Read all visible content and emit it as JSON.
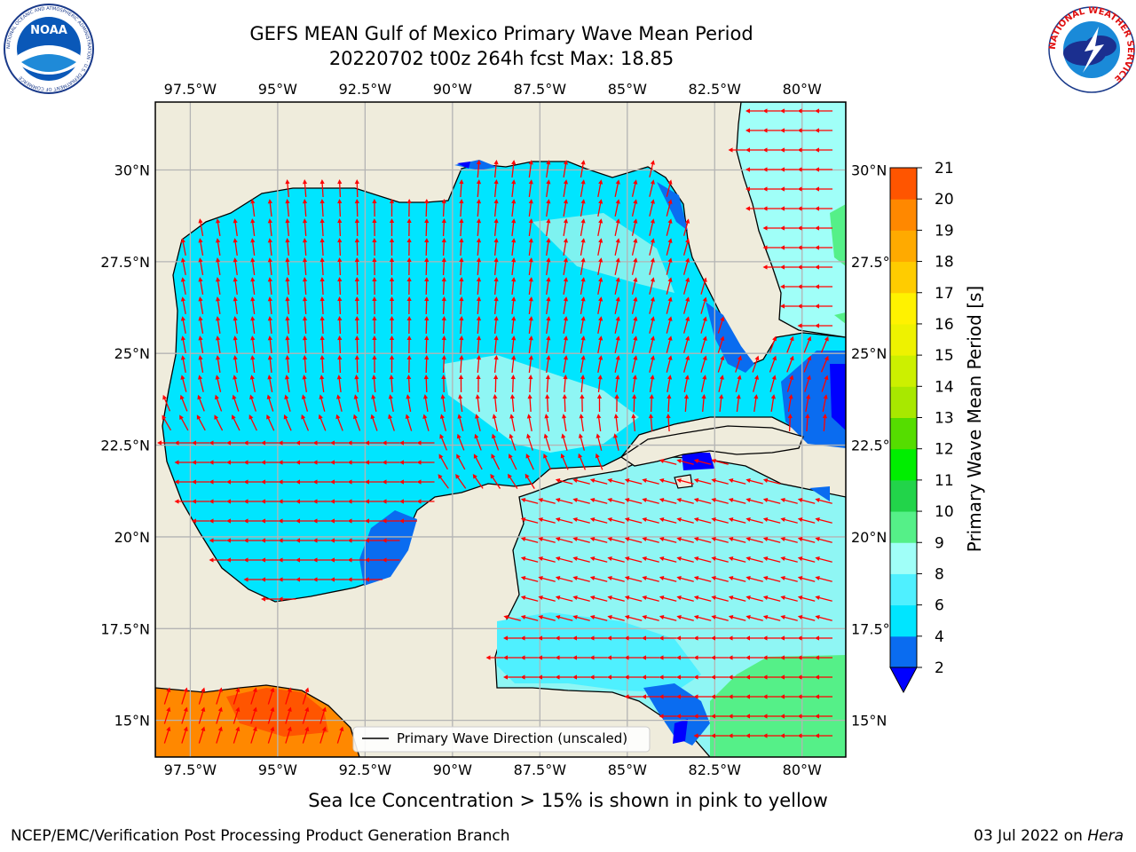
{
  "title": "GEFS MEAN Gulf of Mexico Primary Wave Mean Period",
  "subtitle": "20220702 t00z 264h fcst   Max: 18.85",
  "lon_ticks": [
    "97.5°W",
    "95°W",
    "92.5°W",
    "90°W",
    "87.5°W",
    "85°W",
    "82.5°W",
    "80°W"
  ],
  "lat_ticks": [
    "30°N",
    "27.5°N",
    "25°N",
    "22.5°N",
    "20°N",
    "17.5°N",
    "15°N"
  ],
  "colorbar": {
    "label": "Primary Wave Mean Period [s]",
    "tick_labels": [
      "2",
      "4",
      "6",
      "8",
      "9",
      "10",
      "11",
      "12",
      "13",
      "14",
      "15",
      "16",
      "17",
      "18",
      "19",
      "20",
      "21"
    ],
    "colors": [
      "#0a6cf0",
      "#00e5ff",
      "#4ff0ff",
      "#a0fff8",
      "#55f088",
      "#22d44a",
      "#00ee00",
      "#55dd00",
      "#a8e800",
      "#ccf000",
      "#eef200",
      "#fff200",
      "#ffcc00",
      "#ffaa00",
      "#ff8800",
      "#ff5500",
      "#ff2200",
      "#ff0000"
    ],
    "extend_color": "#0000ff"
  },
  "legend_label": "Primary Wave Direction (unscaled)",
  "note": "Sea Ice Concentration > 15% is shown in pink to yellow",
  "credit": "NCEP/EMC/Verification Post Processing Product Generation Branch",
  "date": "03 Jul 2022 on",
  "machine": "Hera",
  "logos": {
    "noaa": "NOAA",
    "noaa_ring": "NATIONAL OCEANIC AND ATMOSPHERIC ADMINISTRATION · U.S. DEPARTMENT OF COMMERCE",
    "nws_ring": "NATIONAL WEATHER SERVICE"
  },
  "colors": {
    "land": "#efecdc",
    "arrow": "#ff0000",
    "grid": "#b4b4b4"
  }
}
